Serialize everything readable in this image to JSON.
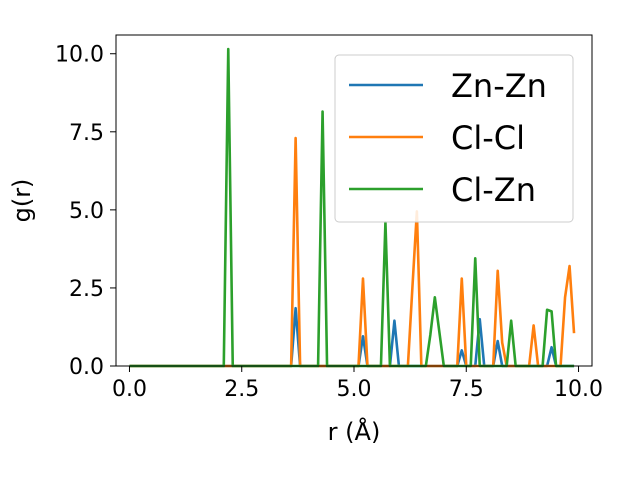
{
  "chart_data": {
    "type": "line",
    "xlabel": "r (Å)",
    "ylabel": "g(r)",
    "xlim": [
      -0.3,
      10.3
    ],
    "ylim": [
      0,
      10.6
    ],
    "xticks": [
      0.0,
      2.5,
      5.0,
      7.5,
      10.0
    ],
    "xtick_labels": [
      "0.0",
      "2.5",
      "5.0",
      "7.5",
      "10.0"
    ],
    "yticks": [
      0.0,
      2.5,
      5.0,
      7.5,
      10.0
    ],
    "ytick_labels": [
      "0.0",
      "2.5",
      "5.0",
      "7.5",
      "10.0"
    ],
    "grid": false,
    "legend_position": "upper-right",
    "series": [
      {
        "name": "Zn-Zn",
        "color": "#1f77b4",
        "x": [
          0.0,
          3.6,
          3.7,
          3.8,
          5.1,
          5.2,
          5.3,
          5.8,
          5.9,
          6.0,
          7.3,
          7.4,
          7.5,
          7.7,
          7.8,
          7.9,
          8.1,
          8.2,
          8.3,
          9.3,
          9.4,
          9.5,
          9.9
        ],
        "values": [
          0.0,
          0.0,
          1.85,
          0.0,
          0.0,
          0.95,
          0.0,
          0.0,
          1.45,
          0.0,
          0.0,
          0.5,
          0.0,
          0.0,
          1.5,
          0.0,
          0.0,
          0.8,
          0.0,
          0.0,
          0.6,
          0.0,
          0.0
        ]
      },
      {
        "name": "Cl-Cl",
        "color": "#ff7f0e",
        "x": [
          0.0,
          3.5,
          3.6,
          3.7,
          3.8,
          5.1,
          5.2,
          5.3,
          6.2,
          6.3,
          6.4,
          6.5,
          7.3,
          7.4,
          7.5,
          8.1,
          8.2,
          8.3,
          8.4,
          8.9,
          9.0,
          9.1,
          9.6,
          9.7,
          9.8,
          9.9
        ],
        "values": [
          0.0,
          0.0,
          0.0,
          7.3,
          0.0,
          0.0,
          2.8,
          0.0,
          0.0,
          2.5,
          4.95,
          0.0,
          0.0,
          2.8,
          0.0,
          0.0,
          3.05,
          0.75,
          0.0,
          0.0,
          1.3,
          0.0,
          0.0,
          2.2,
          3.2,
          1.05
        ]
      },
      {
        "name": "Cl-Zn",
        "color": "#2ca02c",
        "x": [
          0.0,
          2.1,
          2.2,
          2.3,
          4.2,
          4.3,
          4.4,
          5.6,
          5.7,
          5.8,
          6.6,
          6.7,
          6.8,
          7.0,
          7.6,
          7.7,
          7.8,
          8.4,
          8.5,
          8.6,
          9.2,
          9.3,
          9.4,
          9.5,
          9.9
        ],
        "values": [
          0.0,
          0.0,
          10.15,
          0.0,
          0.0,
          8.15,
          0.0,
          0.0,
          4.6,
          0.0,
          0.0,
          1.0,
          2.2,
          0.0,
          0.0,
          3.45,
          0.0,
          0.0,
          1.45,
          0.0,
          0.0,
          1.8,
          1.75,
          0.0,
          0.0
        ]
      }
    ]
  }
}
